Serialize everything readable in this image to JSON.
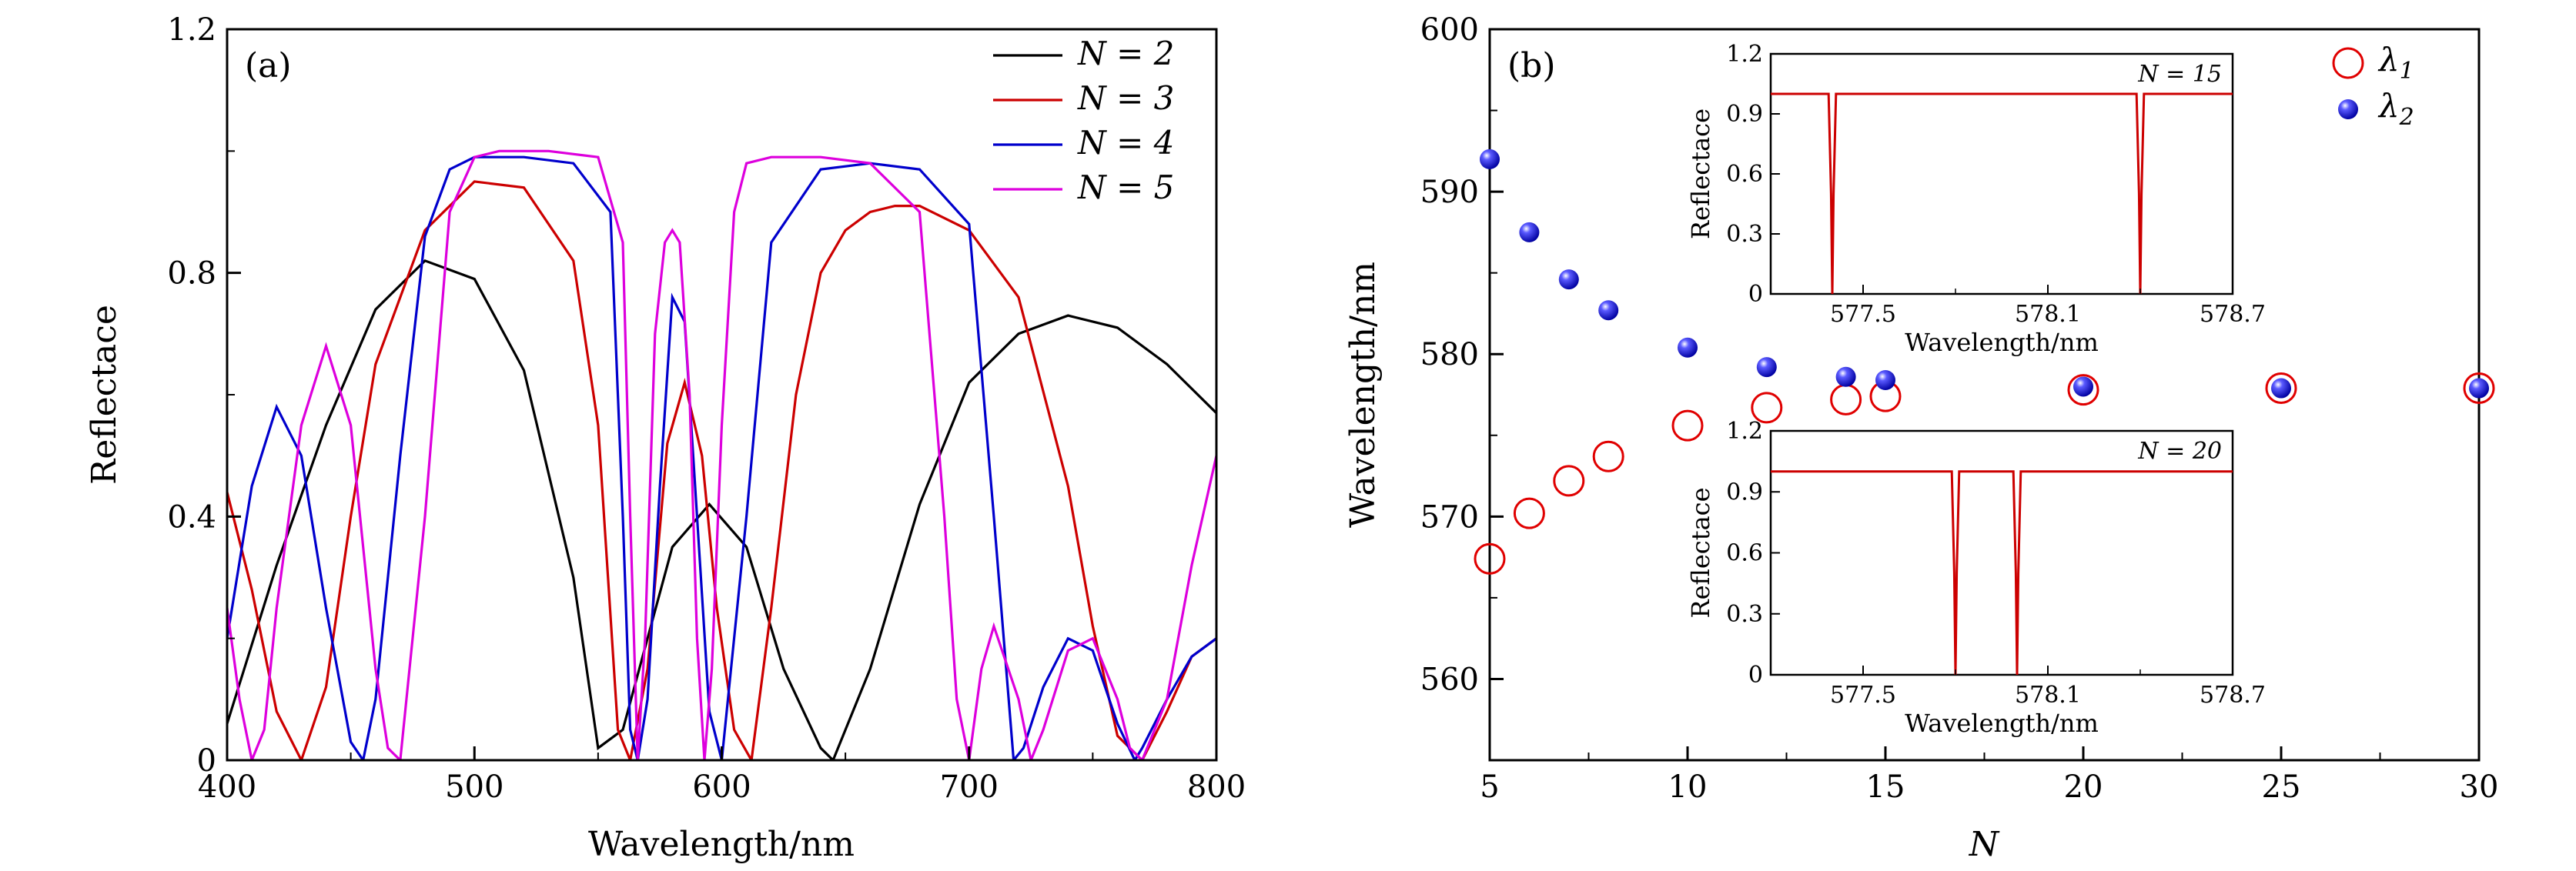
{
  "chart_data": [
    {
      "type": "line",
      "panel_label": "(a)",
      "xlabel": "Wavelength/nm",
      "ylabel": "Reflectace",
      "xlim": [
        400,
        800
      ],
      "ylim": [
        0,
        1.2
      ],
      "x_ticks": [
        400,
        500,
        600,
        700,
        800
      ],
      "x_tick_labels": [
        "400",
        "500",
        "600",
        "700",
        "800"
      ],
      "y_ticks": [
        0,
        0.4,
        0.8,
        1.2
      ],
      "y_tick_labels": [
        "0",
        "0.4",
        "0.8",
        "1.2"
      ],
      "legend_position": "top-right",
      "grid": false,
      "series": [
        {
          "name": "N = 2",
          "color": "#000000",
          "x": [
            400,
            420,
            440,
            460,
            480,
            500,
            520,
            540,
            550,
            560,
            570,
            580,
            595,
            610,
            625,
            640,
            645,
            660,
            680,
            700,
            720,
            740,
            760,
            780,
            800
          ],
          "y": [
            0.06,
            0.32,
            0.55,
            0.74,
            0.82,
            0.79,
            0.64,
            0.3,
            0.02,
            0.05,
            0.2,
            0.35,
            0.42,
            0.35,
            0.15,
            0.02,
            0.0,
            0.15,
            0.42,
            0.62,
            0.7,
            0.73,
            0.71,
            0.65,
            0.57
          ]
        },
        {
          "name": "N = 3",
          "color": "#cc0000",
          "x": [
            400,
            410,
            420,
            430,
            440,
            450,
            460,
            480,
            500,
            520,
            540,
            550,
            558,
            563,
            570,
            578,
            585,
            592,
            598,
            605,
            612,
            620,
            630,
            640,
            650,
            660,
            670,
            680,
            700,
            720,
            740,
            750,
            760,
            770,
            780,
            790,
            800
          ],
          "y": [
            0.44,
            0.28,
            0.08,
            0.0,
            0.12,
            0.4,
            0.65,
            0.87,
            0.95,
            0.94,
            0.82,
            0.55,
            0.05,
            0.0,
            0.15,
            0.52,
            0.62,
            0.5,
            0.25,
            0.05,
            0.0,
            0.25,
            0.6,
            0.8,
            0.87,
            0.9,
            0.91,
            0.91,
            0.87,
            0.76,
            0.45,
            0.22,
            0.04,
            0.0,
            0.08,
            0.17,
            0.2
          ]
        },
        {
          "name": "N = 4",
          "color": "#0000cc",
          "x": [
            400,
            410,
            420,
            430,
            440,
            450,
            455,
            460,
            470,
            480,
            490,
            500,
            520,
            540,
            555,
            560,
            563,
            566,
            570,
            575,
            580,
            585,
            590,
            595,
            600,
            610,
            620,
            640,
            660,
            680,
            700,
            710,
            718,
            722,
            730,
            740,
            750,
            760,
            767,
            770,
            780,
            790,
            800
          ],
          "y": [
            0.2,
            0.45,
            0.58,
            0.5,
            0.25,
            0.03,
            0.0,
            0.1,
            0.5,
            0.86,
            0.97,
            0.99,
            0.99,
            0.98,
            0.9,
            0.4,
            0.05,
            0.0,
            0.1,
            0.45,
            0.76,
            0.72,
            0.4,
            0.08,
            0.0,
            0.4,
            0.85,
            0.97,
            0.98,
            0.97,
            0.88,
            0.4,
            0.0,
            0.02,
            0.12,
            0.2,
            0.18,
            0.06,
            0.0,
            0.02,
            0.1,
            0.17,
            0.2
          ]
        },
        {
          "name": "N = 5",
          "color": "#dd00dd",
          "x": [
            400,
            405,
            410,
            415,
            420,
            430,
            440,
            450,
            460,
            465,
            470,
            480,
            490,
            500,
            510,
            530,
            550,
            560,
            563,
            566,
            569,
            573,
            577,
            580,
            583,
            587,
            590,
            593,
            596,
            600,
            605,
            610,
            620,
            640,
            660,
            680,
            690,
            695,
            700,
            705,
            710,
            720,
            725,
            730,
            740,
            750,
            760,
            765,
            770,
            780,
            790,
            800
          ],
          "y": [
            0.25,
            0.1,
            0.0,
            0.05,
            0.25,
            0.55,
            0.68,
            0.55,
            0.15,
            0.02,
            0.0,
            0.4,
            0.9,
            0.99,
            1.0,
            1.0,
            0.99,
            0.85,
            0.4,
            0.0,
            0.2,
            0.7,
            0.85,
            0.87,
            0.85,
            0.6,
            0.2,
            0.0,
            0.15,
            0.55,
            0.9,
            0.98,
            0.99,
            0.99,
            0.98,
            0.9,
            0.4,
            0.1,
            0.0,
            0.15,
            0.22,
            0.1,
            0.0,
            0.05,
            0.18,
            0.2,
            0.1,
            0.02,
            0.0,
            0.1,
            0.32,
            0.5
          ]
        }
      ]
    },
    {
      "type": "scatter",
      "panel_label": "(b)",
      "xlabel": "N",
      "ylabel": "Wavelength/nm",
      "xlim": [
        5,
        30
      ],
      "ylim": [
        555,
        600
      ],
      "x_ticks": [
        5,
        10,
        15,
        20,
        25,
        30
      ],
      "x_tick_labels": [
        "5",
        "10",
        "15",
        "20",
        "25",
        "30"
      ],
      "y_ticks": [
        560,
        570,
        580,
        590,
        600
      ],
      "y_tick_labels": [
        "560",
        "570",
        "580",
        "590",
        "600"
      ],
      "legend_position": "top-right",
      "grid": false,
      "series": [
        {
          "name": "λ1",
          "legend_main": "λ",
          "legend_sub": "1",
          "marker": "open-circle",
          "color": "#e00000",
          "x": [
            5,
            6,
            7,
            8,
            10,
            12,
            14,
            15,
            20,
            25,
            30
          ],
          "y": [
            567.4,
            570.2,
            572.2,
            573.7,
            575.6,
            576.7,
            577.2,
            577.4,
            577.8,
            577.9,
            577.9
          ]
        },
        {
          "name": "λ2",
          "legend_main": "λ",
          "legend_sub": "2",
          "marker": "filled-sphere",
          "color": "#1010ee",
          "x": [
            5,
            6,
            7,
            8,
            10,
            12,
            14,
            15,
            20,
            25,
            30
          ],
          "y": [
            592.0,
            587.5,
            584.6,
            582.7,
            580.4,
            579.2,
            578.6,
            578.4,
            578.0,
            577.9,
            577.9
          ]
        }
      ],
      "insets": [
        {
          "type": "line",
          "label": "N = 15",
          "xlabel": "Wavelength/nm",
          "ylabel": "Reflectace",
          "xlim": [
            577.2,
            578.7
          ],
          "ylim": [
            0,
            1.2
          ],
          "x_ticks": [
            577.5,
            578.1,
            578.7
          ],
          "x_tick_labels": [
            "577.5",
            "578.1",
            "578.7"
          ],
          "y_ticks": [
            0,
            0.3,
            0.6,
            0.9,
            1.2
          ],
          "y_tick_labels": [
            "0",
            "0.3",
            "0.6",
            "0.9",
            "1.2"
          ],
          "color": "#cc0000",
          "dips_nm": [
            577.4,
            578.4
          ],
          "baseline": 1.0
        },
        {
          "type": "line",
          "label": "N = 20",
          "xlabel": "Wavelength/nm",
          "ylabel": "Reflectace",
          "xlim": [
            577.2,
            578.7
          ],
          "ylim": [
            0,
            1.2
          ],
          "x_ticks": [
            577.5,
            578.1,
            578.7
          ],
          "x_tick_labels": [
            "577.5",
            "578.1",
            "578.7"
          ],
          "y_ticks": [
            0,
            0.3,
            0.6,
            0.9,
            1.2
          ],
          "y_tick_labels": [
            "0",
            "0.3",
            "0.6",
            "0.9",
            "1.2"
          ],
          "color": "#cc0000",
          "dips_nm": [
            577.8,
            578.0
          ],
          "baseline": 1.0
        }
      ]
    }
  ]
}
